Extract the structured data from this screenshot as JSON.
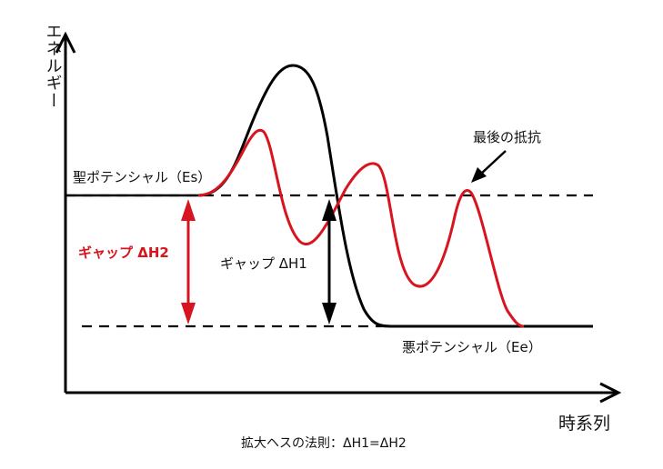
{
  "axes": {
    "y_label": "エネルギー",
    "x_label": "時系列"
  },
  "labels": {
    "es": "聖ポテンシャル（Es）",
    "ee": "悪ポテンシャル（Ee）",
    "gap_h2": "ギャップ ΔH2",
    "gap_h1": "ギャップ ΔH1",
    "last_resistance": "最後の抵抗",
    "caption": "拡大ヘスの法則：ΔH1=ΔH2"
  },
  "colors": {
    "black_curve": "#000000",
    "red_curve": "#d8141f",
    "axes": "#000000"
  }
}
